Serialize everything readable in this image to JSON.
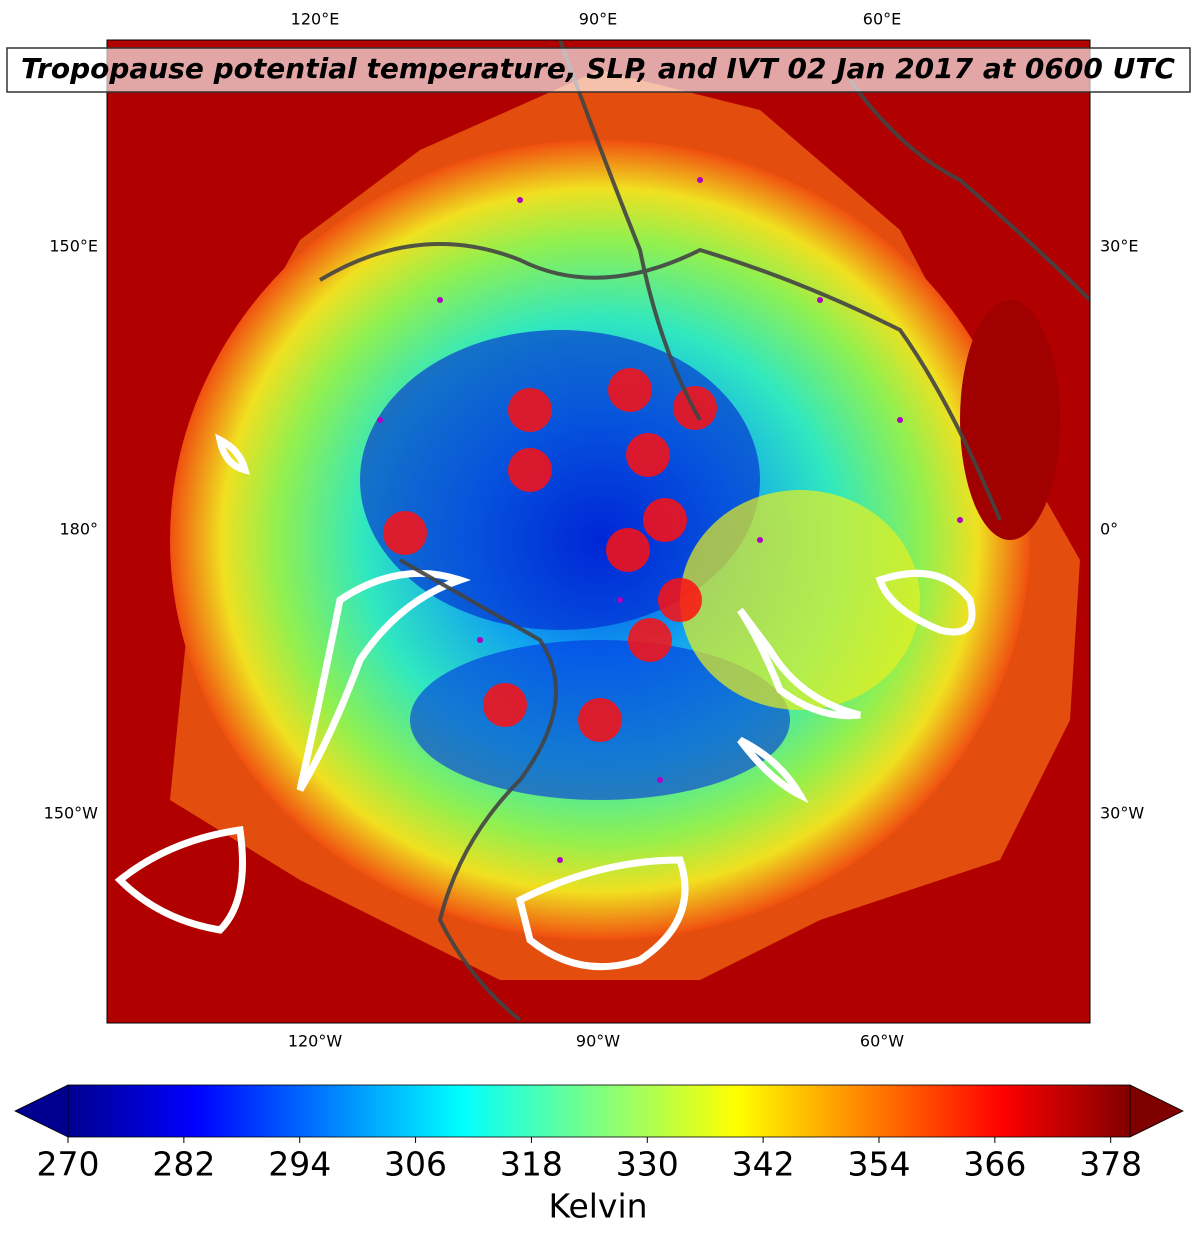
{
  "title": "Tropopause potential temperature, SLP, and IVT 02 Jan 2017 at 0600 UTC",
  "map": {
    "top_labels": [
      "120°E",
      "90°E",
      "60°E"
    ],
    "left_labels": [
      "150°E",
      "180°",
      "150°W"
    ],
    "right_labels": [
      "30°E",
      "0°",
      "30°W"
    ],
    "bottom_labels": [
      "120°W",
      "90°W",
      "60°W"
    ]
  },
  "colorbar": {
    "label": "Kelvin",
    "lim": [
      270,
      380
    ],
    "ticks": [
      270,
      282,
      294,
      306,
      318,
      330,
      342,
      354,
      366,
      378
    ]
  }
}
